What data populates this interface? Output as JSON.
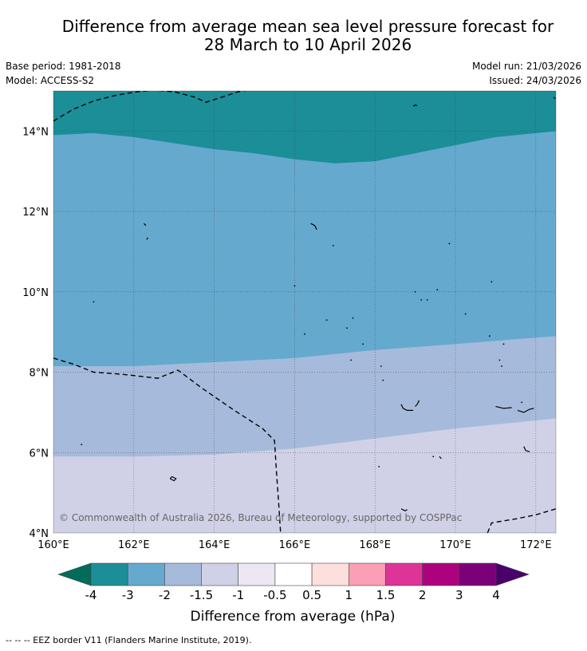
{
  "title_line1": "Difference from average mean sea level pressure forecast for",
  "title_line2": "28 March to 10 April 2026",
  "base_period": "Base period: 1981-2018",
  "model": "Model: ACCESS-S2",
  "model_run": "Model run: 21/03/2026",
  "issued": "Issued: 24/03/2026",
  "copyright": "© Commonwealth of Australia 2026, Bureau of Meteorology, supported by COSPPac",
  "map": {
    "lon_range": [
      160,
      172.5
    ],
    "lat_range": [
      4,
      15
    ],
    "x_ticks": [
      {
        "value": 160,
        "label": "160°E"
      },
      {
        "value": 162,
        "label": "162°E"
      },
      {
        "value": 164,
        "label": "164°E"
      },
      {
        "value": 166,
        "label": "166°E"
      },
      {
        "value": 168,
        "label": "168°E"
      },
      {
        "value": 170,
        "label": "170°E"
      },
      {
        "value": 172,
        "label": "172°E"
      }
    ],
    "y_ticks": [
      {
        "value": 4,
        "label": "4°N"
      },
      {
        "value": 6,
        "label": "6°N"
      },
      {
        "value": 8,
        "label": "8°N"
      },
      {
        "value": 10,
        "label": "10°N"
      },
      {
        "value": 12,
        "label": "12°N"
      },
      {
        "value": 14,
        "label": "14°N"
      }
    ],
    "zones": [
      {
        "name": "-3-to-2",
        "color": "#65a9cf",
        "boundary": [
          [
            160,
            13.9
          ],
          [
            161,
            13.95
          ],
          [
            162,
            13.85
          ],
          [
            163,
            13.7
          ],
          [
            164,
            13.55
          ],
          [
            165,
            13.45
          ],
          [
            166,
            13.3
          ],
          [
            167,
            13.2
          ],
          [
            168,
            13.25
          ],
          [
            169,
            13.45
          ],
          [
            170,
            13.65
          ],
          [
            171,
            13.85
          ],
          [
            172.5,
            14
          ]
        ]
      },
      {
        "name": "-2-to-1.5",
        "color": "#a6bbdb",
        "boundary": [
          [
            160,
            8.15
          ],
          [
            162,
            8.15
          ],
          [
            164,
            8.25
          ],
          [
            166,
            8.35
          ],
          [
            168,
            8.55
          ],
          [
            170,
            8.7
          ],
          [
            172.5,
            8.9
          ]
        ]
      },
      {
        "name": "-1.5-to-1",
        "color": "#d0d1e7",
        "boundary": [
          [
            160,
            5.9
          ],
          [
            162,
            5.9
          ],
          [
            164,
            5.95
          ],
          [
            166,
            6.1
          ],
          [
            168,
            6.35
          ],
          [
            170,
            6.6
          ],
          [
            172.5,
            6.85
          ]
        ]
      }
    ],
    "top_color": "#1b8e97",
    "eez_segments": [
      [
        [
          160,
          14.25
        ],
        [
          160.5,
          14.55
        ],
        [
          161,
          14.75
        ],
        [
          161.5,
          14.88
        ],
        [
          162,
          14.97
        ],
        [
          162.5,
          15.02
        ],
        [
          163,
          14.98
        ],
        [
          163.5,
          14.85
        ],
        [
          163.8,
          14.72
        ],
        [
          164.2,
          14.85
        ],
        [
          164.6,
          14.98
        ],
        [
          165,
          15.05
        ]
      ],
      [
        [
          160,
          8.35
        ],
        [
          160.5,
          8.2
        ],
        [
          161,
          8.0
        ],
        [
          161.7,
          7.95
        ],
        [
          162.6,
          7.85
        ],
        [
          163.1,
          8.05
        ],
        [
          163.7,
          7.6
        ],
        [
          164.5,
          7.05
        ],
        [
          165.2,
          6.6
        ],
        [
          165.5,
          6.3
        ],
        [
          165.55,
          5.5
        ],
        [
          165.6,
          4.8
        ],
        [
          165.65,
          4.0
        ]
      ],
      [
        [
          170.8,
          4.0
        ],
        [
          170.9,
          4.25
        ],
        [
          171.5,
          4.35
        ],
        [
          172,
          4.45
        ],
        [
          172.5,
          4.6
        ]
      ]
    ],
    "islands": [
      [
        [
          168.95,
          14.62
        ],
        [
          169.0,
          14.65
        ],
        [
          169.05,
          14.63
        ]
      ],
      [
        [
          172.45,
          14.85
        ],
        [
          172.48,
          14.8
        ]
      ],
      [
        [
          162.25,
          11.7
        ],
        [
          162.3,
          11.65
        ]
      ],
      [
        [
          162.35,
          11.35
        ],
        [
          162.32,
          11.3
        ]
      ],
      [
        [
          166.4,
          11.7
        ],
        [
          166.5,
          11.65
        ],
        [
          166.55,
          11.55
        ]
      ],
      [
        [
          168.65,
          7.2
        ],
        [
          168.7,
          7.1
        ],
        [
          168.8,
          7.05
        ],
        [
          168.95,
          7.05
        ]
      ],
      [
        [
          169.0,
          7.15
        ],
        [
          169.05,
          7.2
        ],
        [
          169.1,
          7.3
        ]
      ],
      [
        [
          171.0,
          7.15
        ],
        [
          171.2,
          7.1
        ],
        [
          171.4,
          7.12
        ]
      ],
      [
        [
          171.55,
          7.05
        ],
        [
          171.7,
          7.0
        ],
        [
          171.85,
          7.08
        ],
        [
          171.95,
          7.1
        ]
      ],
      [
        [
          171.7,
          6.15
        ],
        [
          171.75,
          6.05
        ],
        [
          171.85,
          6.02
        ]
      ],
      [
        [
          169.6,
          5.9
        ],
        [
          169.65,
          5.85
        ]
      ],
      [
        [
          168.65,
          4.6
        ],
        [
          168.75,
          4.55
        ],
        [
          168.8,
          4.58
        ]
      ],
      [
        [
          162.9,
          5.35
        ],
        [
          163.0,
          5.3
        ],
        [
          163.05,
          5.35
        ],
        [
          162.95,
          5.4
        ],
        [
          162.9,
          5.35
        ]
      ]
    ],
    "dots": [
      [
        166.96,
        11.15
      ],
      [
        169.85,
        11.2
      ],
      [
        166.0,
        10.15
      ],
      [
        170.9,
        10.25
      ],
      [
        161.0,
        9.75
      ],
      [
        169.0,
        10.0
      ],
      [
        169.55,
        10.05
      ],
      [
        169.15,
        9.8
      ],
      [
        169.3,
        9.8
      ],
      [
        170.25,
        9.45
      ],
      [
        167.45,
        9.35
      ],
      [
        167.3,
        9.1
      ],
      [
        166.8,
        9.3
      ],
      [
        166.25,
        8.95
      ],
      [
        170.85,
        8.9
      ],
      [
        167.7,
        8.7
      ],
      [
        171.2,
        8.7
      ],
      [
        171.1,
        8.3
      ],
      [
        167.4,
        8.3
      ],
      [
        171.15,
        8.15
      ],
      [
        168.15,
        8.15
      ],
      [
        168.2,
        7.8
      ],
      [
        171.65,
        7.25
      ],
      [
        160.7,
        6.2
      ],
      [
        169.45,
        5.9
      ],
      [
        168.1,
        5.65
      ]
    ]
  },
  "legend": {
    "title": "Difference from average (hPa)",
    "colors": [
      "#016c59",
      "#1b8e97",
      "#65a9cf",
      "#a6bbdb",
      "#d0d1e7",
      "#ece7f2",
      "#ffffff",
      "#fde0dd",
      "#fa9fb5",
      "#dd3497",
      "#ae017e",
      "#7a0177",
      "#49006a"
    ],
    "tick_labels": [
      "-4",
      "-3",
      "-2",
      "-1.5",
      "-1",
      "-0.5",
      "0.5",
      "1",
      "1.5",
      "2",
      "3",
      "4"
    ]
  },
  "footer_text": "--  --  -- EEZ border V11 (Flanders Marine Institute, 2019)."
}
